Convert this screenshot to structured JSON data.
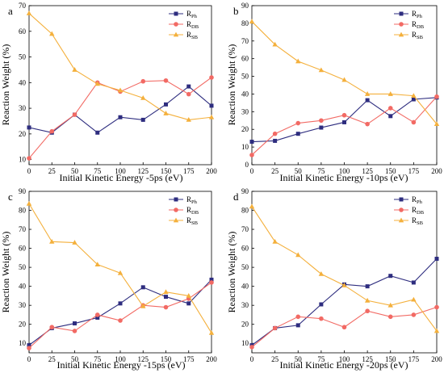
{
  "figure": {
    "background": "#ffffff"
  },
  "series_styles": [
    {
      "key": "Ph",
      "color": "#2e2d7f",
      "marker": "square"
    },
    {
      "key": "DB",
      "color": "#f26a64",
      "marker": "circle"
    },
    {
      "key": "SB",
      "color": "#f4b03c",
      "marker": "triangle"
    }
  ],
  "chart_data": [
    {
      "type": "line",
      "panel_letter": "a",
      "xlabel": "Initial Kinetic Energy -5ps (eV)",
      "ylabel": "Reaction Weight (%)",
      "x": [
        0,
        25,
        50,
        75,
        100,
        125,
        150,
        175,
        200
      ],
      "xticks": [
        0,
        25,
        50,
        75,
        100,
        125,
        150,
        175,
        200
      ],
      "xlim": [
        0,
        200
      ],
      "ylim": [
        8,
        70
      ],
      "yticks": [
        10,
        20,
        30,
        40,
        50,
        60,
        70
      ],
      "legend_position": "top-right",
      "series": [
        {
          "name": "R",
          "sub": "Ph",
          "values": [
            22.5,
            20.5,
            27.5,
            20.5,
            26.5,
            25.5,
            31.5,
            38.5,
            31.0
          ]
        },
        {
          "name": "R",
          "sub": "DB",
          "values": [
            10.5,
            21.0,
            27.5,
            40.0,
            36.5,
            40.5,
            40.8,
            35.5,
            42.0
          ]
        },
        {
          "name": "R",
          "sub": "SB",
          "values": [
            67.0,
            59.0,
            45.0,
            39.5,
            37.0,
            34.0,
            28.0,
            25.5,
            26.5
          ]
        }
      ]
    },
    {
      "type": "line",
      "panel_letter": "b",
      "xlabel": "Initial Kinetic Energy -10ps (eV)",
      "ylabel": "Reaction Weight (%)",
      "x": [
        0,
        25,
        50,
        75,
        100,
        125,
        150,
        175,
        200
      ],
      "xticks": [
        0,
        25,
        50,
        75,
        100,
        125,
        150,
        175,
        200
      ],
      "xlim": [
        0,
        200
      ],
      "ylim": [
        0,
        90
      ],
      "yticks": [
        0,
        10,
        20,
        30,
        40,
        50,
        60,
        70,
        80,
        90
      ],
      "legend_position": "top-right",
      "series": [
        {
          "name": "R",
          "sub": "Ph",
          "values": [
            13.0,
            13.5,
            17.5,
            21.0,
            24.0,
            36.5,
            27.5,
            37.0,
            38.0
          ]
        },
        {
          "name": "R",
          "sub": "DB",
          "values": [
            5.5,
            17.5,
            23.5,
            25.0,
            28.0,
            23.0,
            32.0,
            24.0,
            38.5
          ]
        },
        {
          "name": "R",
          "sub": "SB",
          "values": [
            81.0,
            68.0,
            58.5,
            53.5,
            48.0,
            40.0,
            40.0,
            39.0,
            23.0
          ]
        }
      ]
    },
    {
      "type": "line",
      "panel_letter": "c",
      "xlabel": "Initial Kinetic Energy -15ps (eV)",
      "ylabel": "Reaction Weight (%)",
      "x": [
        0,
        25,
        50,
        75,
        100,
        125,
        150,
        175,
        200
      ],
      "xticks": [
        0,
        25,
        50,
        75,
        100,
        125,
        150,
        175,
        200
      ],
      "xlim": [
        0,
        200
      ],
      "ylim": [
        5,
        90
      ],
      "yticks": [
        10,
        20,
        30,
        40,
        50,
        60,
        70,
        80,
        90
      ],
      "legend_position": "top-right",
      "series": [
        {
          "name": "R",
          "sub": "Ph",
          "values": [
            9.0,
            18.0,
            20.5,
            23.5,
            31.0,
            39.5,
            34.5,
            31.0,
            43.5
          ]
        },
        {
          "name": "R",
          "sub": "DB",
          "values": [
            7.5,
            18.5,
            16.5,
            25.0,
            22.0,
            30.0,
            29.0,
            33.5,
            42.0
          ]
        },
        {
          "name": "R",
          "sub": "SB",
          "values": [
            83.5,
            63.5,
            63.0,
            51.5,
            47.0,
            29.5,
            37.0,
            35.0,
            15.5
          ]
        }
      ]
    },
    {
      "type": "line",
      "panel_letter": "d",
      "xlabel": "Initial Kinetic Energy -20ps (eV)",
      "ylabel": "Reaction Weight (%)",
      "x": [
        0,
        25,
        50,
        75,
        100,
        125,
        150,
        175,
        200
      ],
      "xticks": [
        0,
        25,
        50,
        75,
        100,
        125,
        150,
        175,
        200
      ],
      "xlim": [
        0,
        200
      ],
      "ylim": [
        5,
        90
      ],
      "yticks": [
        10,
        20,
        30,
        40,
        50,
        60,
        70,
        80,
        90
      ],
      "legend_position": "top-right",
      "series": [
        {
          "name": "R",
          "sub": "Ph",
          "values": [
            9.0,
            18.0,
            19.5,
            30.5,
            41.0,
            40.0,
            45.5,
            42.0,
            54.5
          ]
        },
        {
          "name": "R",
          "sub": "DB",
          "values": [
            8.0,
            18.0,
            24.0,
            23.0,
            18.5,
            27.0,
            24.0,
            25.0,
            29.0
          ]
        },
        {
          "name": "R",
          "sub": "SB",
          "values": [
            82.0,
            63.5,
            56.5,
            46.5,
            40.5,
            32.5,
            30.0,
            33.0,
            16.5
          ]
        }
      ]
    }
  ]
}
